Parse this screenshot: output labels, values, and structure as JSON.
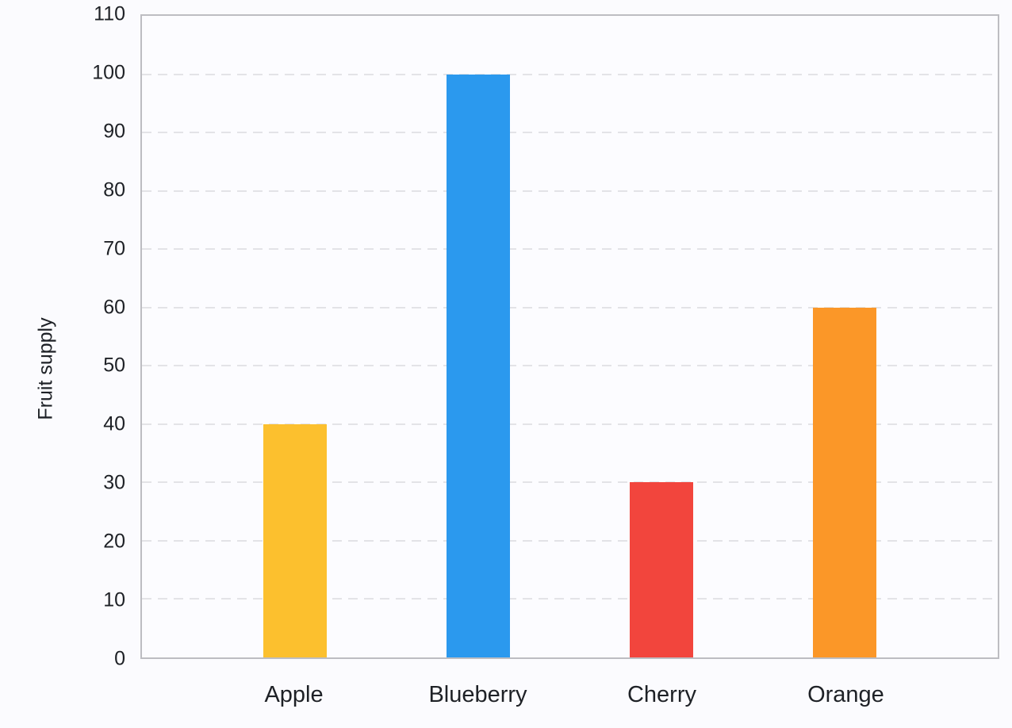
{
  "chart_data": {
    "type": "bar",
    "title": "",
    "xlabel": "",
    "ylabel": "Fruit supply",
    "categories": [
      "Apple",
      "Blueberry",
      "Cherry",
      "Orange"
    ],
    "values": [
      40,
      100,
      30,
      60
    ],
    "bar_colors": [
      "#FCC02E",
      "#2B99EE",
      "#F2453D",
      "#FB9728"
    ],
    "ylim": [
      0,
      110
    ],
    "ytick_step": 10,
    "yticks": [
      0,
      10,
      20,
      30,
      40,
      50,
      60,
      70,
      80,
      90,
      100,
      110
    ],
    "grid": "horizontal-dashed",
    "legend_position": "none"
  },
  "colors": {
    "background": "#FBFBFE",
    "plot_border": "#BDBDC2",
    "gridline": "#E3E3E7",
    "text": "#1E2126"
  }
}
